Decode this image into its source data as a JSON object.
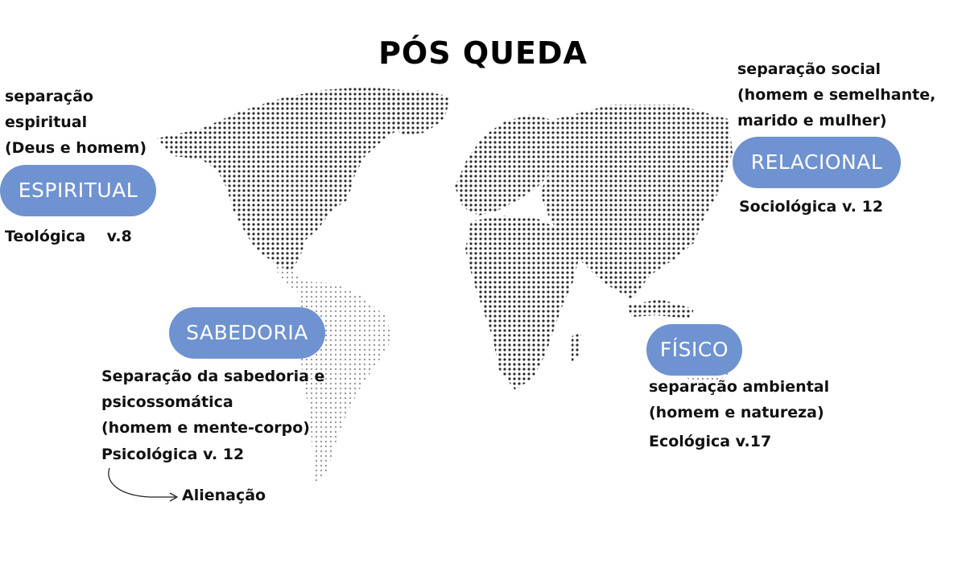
{
  "title": "PÓS QUEDA",
  "accent_color": "#6f92d0",
  "dot_color": "#2b2b2b",
  "dimensions": [
    {
      "key": "espiritual",
      "badge": "ESPIRITUAL",
      "description": [
        "separação",
        "espiritual",
        "(Deus e homem)"
      ],
      "reference": "Teológica    v.8"
    },
    {
      "key": "relacional",
      "badge": "RELACIONAL",
      "description": [
        "separação social",
        "(homem e semelhante,",
        "marido e mulher)"
      ],
      "reference": "Sociológica v. 12"
    },
    {
      "key": "sabedoria",
      "badge": "SABEDORIA",
      "description": [
        "Separação da sabedoria e",
        "psicossomática",
        "(homem e mente-corpo)"
      ],
      "reference": "Psicológica v. 12",
      "consequence": "Alienação"
    },
    {
      "key": "fisico",
      "badge": "FÍSICO",
      "description": [
        "separação ambiental",
        "(homem e natureza)"
      ],
      "reference": "Ecológica v.17"
    }
  ]
}
